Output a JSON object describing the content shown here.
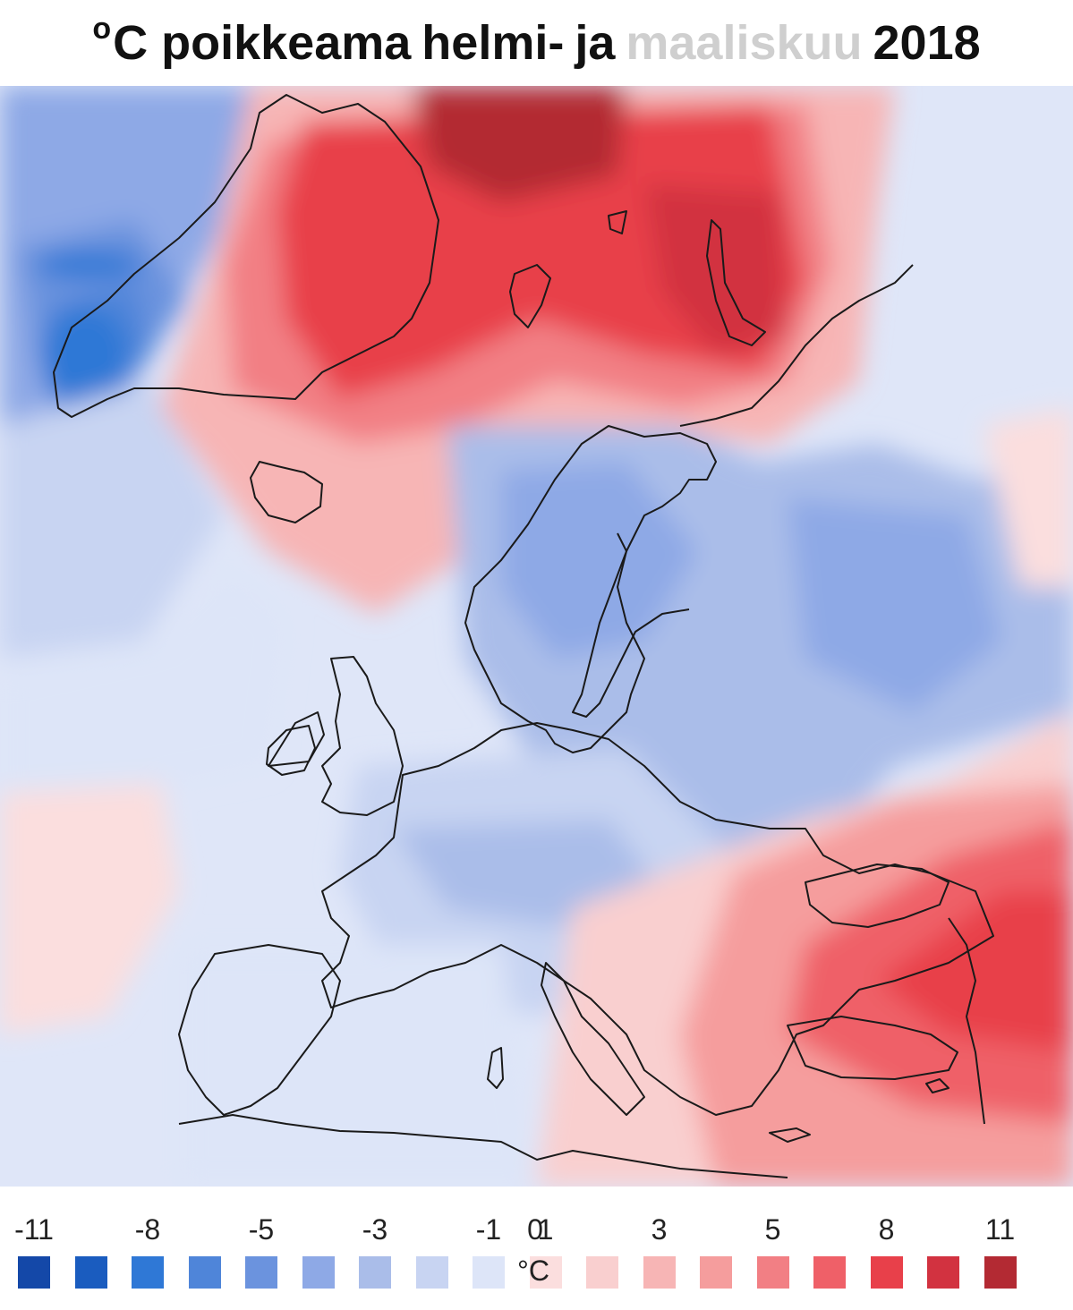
{
  "title": {
    "degree_sup": "o",
    "prefix": "C poikkeama",
    "month_1": "helmi-",
    "conjunction": "ja",
    "month_2": "maaliskuu",
    "year": "2018",
    "active_color": "#111111",
    "inactive_color": "#cfcfcf"
  },
  "legend": {
    "unit": "°C",
    "labels": [
      {
        "text": "-11",
        "index": 0
      },
      {
        "text": "-8",
        "index": 2
      },
      {
        "text": "-5",
        "index": 4
      },
      {
        "text": "-3",
        "index": 6
      },
      {
        "text": "-1",
        "index": 8
      },
      {
        "text": "0",
        "index": 9
      },
      {
        "text": "1",
        "index": 10
      },
      {
        "text": "3",
        "index": 12
      },
      {
        "text": "5",
        "index": 14
      },
      {
        "text": "8",
        "index": 16
      },
      {
        "text": "11",
        "index": 18
      }
    ],
    "colors": [
      "#1448a8",
      "#1a5cbf",
      "#2f78d6",
      "#4f85d9",
      "#6b93de",
      "#8ea9e6",
      "#aabde9",
      "#c8d4f2",
      "#dde5f8",
      "#fbdede",
      "#f9cfcf",
      "#f7b5b5",
      "#f59d9d",
      "#f27f84",
      "#ef6068",
      "#e8404a",
      "#d23240",
      "#b32a33"
    ]
  }
}
